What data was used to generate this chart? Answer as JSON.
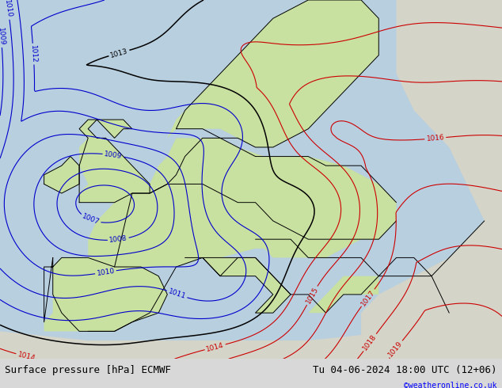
{
  "title_left": "Surface pressure [hPa] ECMWF",
  "title_right": "Tu 04-06-2024 18:00 UTC (12+06)",
  "copyright": "©weatheronline.co.uk",
  "figsize": [
    6.34,
    4.9
  ],
  "dpi": 100,
  "ocean_color": "#b8cfe0",
  "land_green_color": "#c8e0a0",
  "land_gray_color": "#d4d4c8",
  "border_color": "#000000",
  "blue_color": "#0000cc",
  "black_color": "#000000",
  "red_color": "#cc0000",
  "bottom_bar_color": "#d8d8d8",
  "font_size_bottom": 9,
  "font_size_label": 6.5,
  "lon_min": -15,
  "lon_max": 42,
  "lat_min": 33,
  "lat_max": 72
}
